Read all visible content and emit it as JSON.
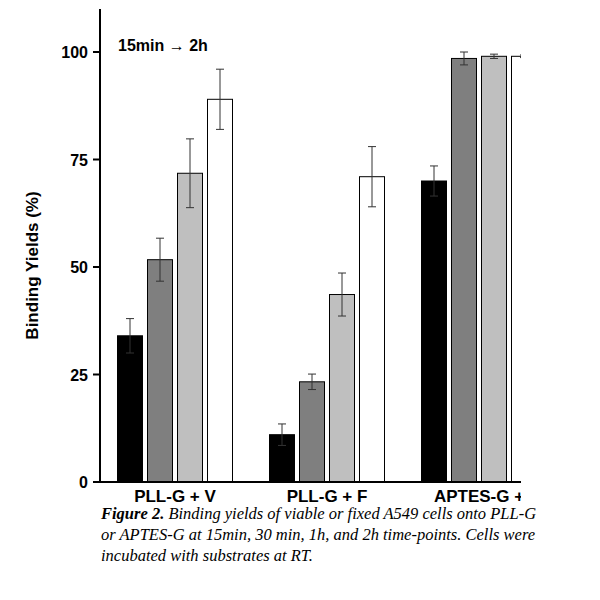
{
  "chart_data": {
    "type": "bar",
    "y_label": "Binding Yields (%)",
    "annotation": "15min → 2h",
    "caption_label": "Figure 2.",
    "caption": "Binding yields of viable or fixed A549 cells onto PLL-G or APTES-G at 15min, 30 min, 1h, and 2h time-points. Cells were incubated with substrates at RT.",
    "categories": [
      "PLL-G + V",
      "PLL-G + F",
      "APTES-G +"
    ],
    "series": [
      {
        "color": "#000000",
        "values": [
          34,
          11,
          70
        ],
        "errors": [
          4,
          2.5,
          3.5
        ]
      },
      {
        "color": "#7f7f7f",
        "values": [
          51.7,
          23.3,
          98.5
        ],
        "errors": [
          5,
          1.8,
          1.5
        ]
      },
      {
        "color": "#bfbfbf",
        "values": [
          71.8,
          43.6,
          99
        ],
        "errors": [
          8,
          5,
          0.5
        ]
      },
      {
        "color": "#ffffff",
        "values": [
          89,
          71,
          99
        ],
        "errors": [
          7,
          7,
          0.3
        ]
      }
    ],
    "ylim": [
      0,
      110
    ],
    "yticks": [
      0,
      25,
      50,
      75,
      100
    ],
    "grid": false
  }
}
